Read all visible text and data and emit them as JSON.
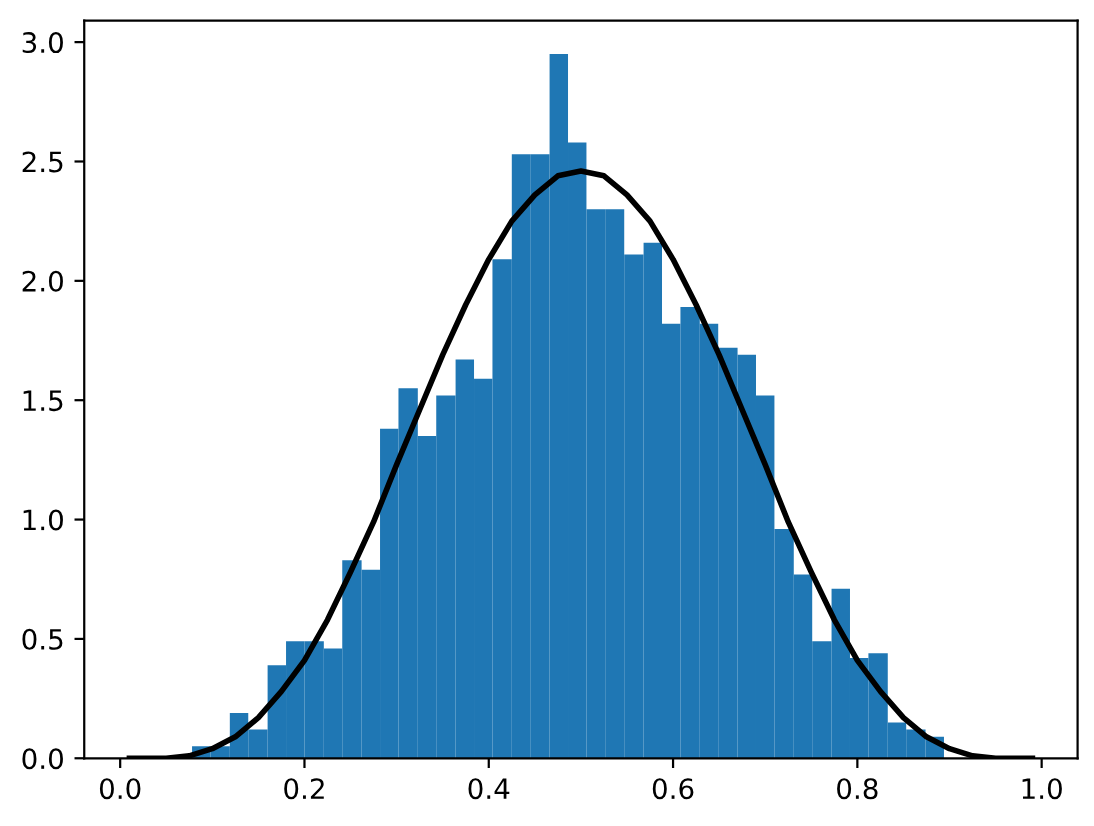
{
  "chart_data": {
    "type": "histogram",
    "xlim": [
      -0.039,
      1.039
    ],
    "ylim": [
      0,
      3.09
    ],
    "xticks": [
      {
        "value": 0,
        "label": "0.0"
      },
      0.2,
      0.4,
      0.6,
      0.8,
      {
        "value": 1,
        "label": "1.0"
      }
    ],
    "yticks": [
      {
        "value": 0,
        "label": "0.0"
      },
      0.5,
      {
        "value": 1,
        "label": "1.0"
      },
      1.5,
      {
        "value": 2,
        "label": "2.0"
      },
      2.5,
      {
        "value": 3,
        "label": "3.0"
      }
    ],
    "grid": false,
    "series": [
      {
        "color": "#1f77b4",
        "bins": [
          0.078,
          0.098,
          0.119,
          0.139,
          0.16,
          0.18,
          0.2,
          0.221,
          0.241,
          0.262,
          0.282,
          0.302,
          0.323,
          0.343,
          0.364,
          0.384,
          0.404,
          0.425,
          0.445,
          0.466,
          0.486,
          0.506,
          0.527,
          0.547,
          0.568,
          0.588,
          0.608,
          0.629,
          0.649,
          0.67,
          0.69,
          0.71,
          0.731,
          0.751,
          0.772,
          0.792,
          0.812,
          0.833,
          0.853,
          0.874,
          0.894
        ],
        "values": [
          0.05,
          0.05,
          0.19,
          0.12,
          0.39,
          0.49,
          0.49,
          0.46,
          0.83,
          0.79,
          1.38,
          1.55,
          1.35,
          1.52,
          1.67,
          1.59,
          2.09,
          2.53,
          2.53,
          2.95,
          2.58,
          2.3,
          2.3,
          2.11,
          2.16,
          1.82,
          1.89,
          1.82,
          1.72,
          1.69,
          1.52,
          0.96,
          0.77,
          0.49,
          0.71,
          0.42,
          0.44,
          0.15,
          0.12,
          0.09
        ]
      },
      {
        "type": "line",
        "color": "#000000",
        "x": [
          0.01,
          0.05,
          0.075,
          0.1,
          0.125,
          0.15,
          0.175,
          0.2,
          0.225,
          0.25,
          0.275,
          0.3,
          0.325,
          0.35,
          0.375,
          0.4,
          0.425,
          0.45,
          0.475,
          0.5,
          0.525,
          0.55,
          0.575,
          0.6,
          0.625,
          0.65,
          0.675,
          0.7,
          0.725,
          0.75,
          0.775,
          0.8,
          0.825,
          0.85,
          0.875,
          0.9,
          0.925,
          0.95,
          0.99
        ],
        "values": [
          0.0,
          0.0,
          0.01,
          0.04,
          0.09,
          0.17,
          0.28,
          0.41,
          0.58,
          0.78,
          0.99,
          1.23,
          1.46,
          1.69,
          1.9,
          2.09,
          2.25,
          2.36,
          2.44,
          2.46,
          2.44,
          2.36,
          2.25,
          2.09,
          1.9,
          1.69,
          1.46,
          1.23,
          0.99,
          0.78,
          0.58,
          0.41,
          0.28,
          0.17,
          0.09,
          0.04,
          0.01,
          0.0,
          0.0
        ]
      }
    ]
  }
}
